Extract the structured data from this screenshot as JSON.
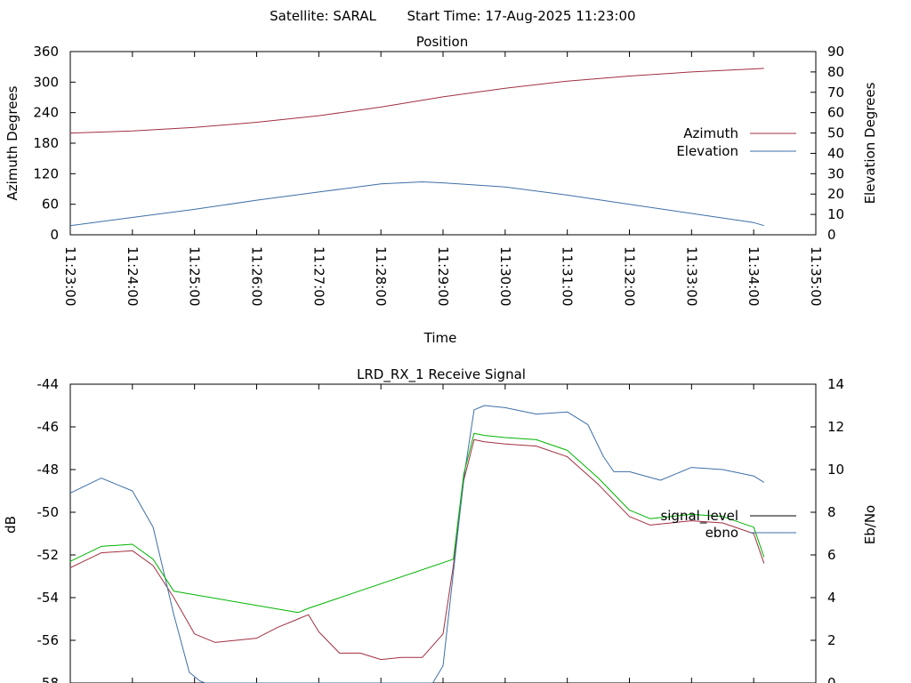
{
  "header": {
    "satellite_label": "Satellite: SARAL",
    "start_time_label": "Start Time: 17-Aug-2025 11:23:00"
  },
  "colors": {
    "azimuth": "#a03040",
    "elevation": "#3e6fa6",
    "signal_level": "#a03040",
    "ebno": "#3e6fa6",
    "green_trace": "#00b400",
    "key_signal_level": "#000000",
    "key_ebno": "#3e6fa6"
  },
  "chart_data": [
    {
      "type": "line",
      "title": "Position",
      "xlabel": "Time",
      "ylabel": "Azimuth Degrees",
      "y2label": "Elevation Degrees",
      "x_ticks": [
        "11:23:00",
        "11:24:00",
        "11:25:00",
        "11:26:00",
        "11:27:00",
        "11:28:00",
        "11:29:00",
        "11:30:00",
        "11:31:00",
        "11:32:00",
        "11:33:00",
        "11:34:00",
        "11:35:00"
      ],
      "xlim": [
        "11:23:00",
        "11:35:00"
      ],
      "ylim": [
        0,
        360
      ],
      "y_ticks": [
        0,
        60,
        120,
        180,
        240,
        300,
        360
      ],
      "y2lim": [
        0,
        90
      ],
      "y2_ticks": [
        0,
        10,
        20,
        30,
        40,
        50,
        60,
        70,
        80,
        90
      ],
      "legend": "right",
      "series": [
        {
          "name": "Azimuth",
          "axis": "y",
          "x": [
            "11:23:00",
            "11:24:00",
            "11:25:00",
            "11:26:00",
            "11:27:00",
            "11:28:00",
            "11:29:00",
            "11:30:00",
            "11:31:00",
            "11:32:00",
            "11:33:00",
            "11:34:00",
            "11:34:10"
          ],
          "values": [
            200,
            204,
            211,
            221,
            234,
            251,
            271,
            288,
            302,
            312,
            320,
            326,
            327
          ]
        },
        {
          "name": "Elevation",
          "axis": "y2",
          "x": [
            "11:23:00",
            "11:24:00",
            "11:25:00",
            "11:26:00",
            "11:27:00",
            "11:28:00",
            "11:28:40",
            "11:29:00",
            "11:30:00",
            "11:31:00",
            "11:32:00",
            "11:33:00",
            "11:34:00",
            "11:34:10"
          ],
          "values": [
            4.5,
            8.5,
            12.5,
            17,
            21,
            25,
            26,
            25.5,
            23.5,
            19.5,
            15,
            10.5,
            6,
            4.5
          ]
        }
      ]
    },
    {
      "type": "line",
      "title": "LRD_RX_1 Receive Signal",
      "ylabel": "dB",
      "y2label": "Eb/No",
      "xlim": [
        "11:23:00",
        "11:35:00"
      ],
      "ylim": [
        -58,
        -44
      ],
      "y_ticks": [
        -58,
        -56,
        -54,
        -52,
        -50,
        -48,
        -46,
        -44
      ],
      "y2lim": [
        0,
        14
      ],
      "y2_ticks": [
        0,
        2,
        4,
        6,
        8,
        10,
        12,
        14
      ],
      "legend": "right",
      "series": [
        {
          "name": "signal_level",
          "axis": "y",
          "x": [
            "11:23:00",
            "11:23:30",
            "11:24:00",
            "11:24:20",
            "11:24:40",
            "11:25:00",
            "11:25:20",
            "11:25:40",
            "11:26:00",
            "11:26:20",
            "11:26:40",
            "11:26:50",
            "11:27:00",
            "11:27:20",
            "11:27:40",
            "11:28:00",
            "11:28:20",
            "11:28:40",
            "11:29:00",
            "11:29:10",
            "11:29:20",
            "11:29:30",
            "11:29:40",
            "11:30:00",
            "11:30:30",
            "11:31:00",
            "11:31:30",
            "11:32:00",
            "11:32:20",
            "11:32:40",
            "11:33:00",
            "11:33:30",
            "11:34:00",
            "11:34:10"
          ],
          "values": [
            -52.6,
            -51.9,
            -51.8,
            -52.5,
            -54.0,
            -55.7,
            -56.1,
            -56.0,
            -55.9,
            -55.4,
            -55.0,
            -54.8,
            -55.6,
            -56.6,
            -56.6,
            -56.9,
            -56.8,
            -56.8,
            -55.7,
            -52.5,
            -48.5,
            -46.6,
            -46.7,
            -46.8,
            -46.9,
            -47.4,
            -48.7,
            -50.2,
            -50.6,
            -50.5,
            -50.4,
            -50.5,
            -51.0,
            -52.4
          ]
        },
        {
          "name": "ebno",
          "axis": "y2",
          "x": [
            "11:23:00",
            "11:23:30",
            "11:24:00",
            "11:24:20",
            "11:24:40",
            "11:24:55",
            "11:25:05",
            "11:25:10",
            "11:28:50",
            "11:29:00",
            "11:29:20",
            "11:29:30",
            "11:29:40",
            "11:30:00",
            "11:30:30",
            "11:31:00",
            "11:31:20",
            "11:31:35",
            "11:31:45",
            "11:32:00",
            "11:32:30",
            "11:33:00",
            "11:33:30",
            "11:34:00",
            "11:34:10"
          ],
          "values": [
            8.9,
            9.6,
            9.0,
            7.3,
            3.2,
            0.5,
            0.1,
            0,
            0,
            0.8,
            9.6,
            12.8,
            13.0,
            12.9,
            12.6,
            12.7,
            12.1,
            10.6,
            9.9,
            9.9,
            9.5,
            10.1,
            10.0,
            9.7,
            9.4
          ]
        }
      ]
    }
  ]
}
